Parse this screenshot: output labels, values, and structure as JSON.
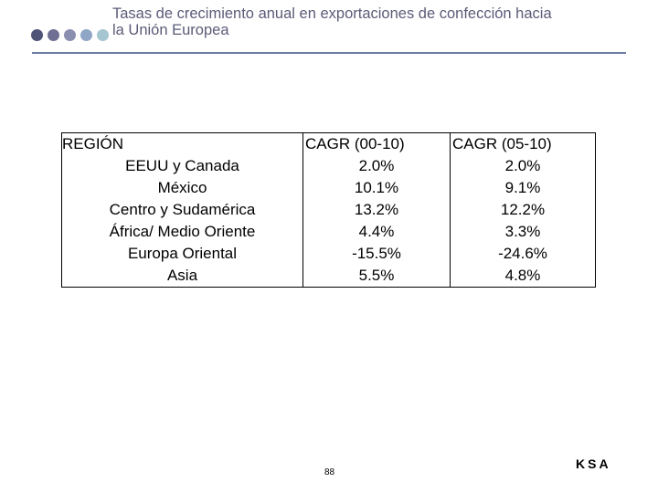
{
  "header": {
    "title_lines": [
      "Tasas de crecimiento anual en exportaciones de confección hacia",
      "la Unión Europea"
    ]
  },
  "table": {
    "columns": [
      "REGIÓN",
      "CAGR (00-10)",
      "CAGR (05-10)"
    ],
    "rows": [
      [
        "EEUU y Canada",
        "2.0%",
        "2.0%"
      ],
      [
        "México",
        "10.1%",
        "9.1%"
      ],
      [
        "Centro y Sudamérica",
        "13.2%",
        "12.2%"
      ],
      [
        "África/ Medio Oriente",
        "4.4%",
        "3.3%"
      ],
      [
        "Europa Oriental",
        "-15.5%",
        "-24.6%"
      ],
      [
        "Asia",
        "5.5%",
        "4.8%"
      ]
    ]
  },
  "footer": {
    "page_number": "88",
    "logo": "KSA"
  }
}
